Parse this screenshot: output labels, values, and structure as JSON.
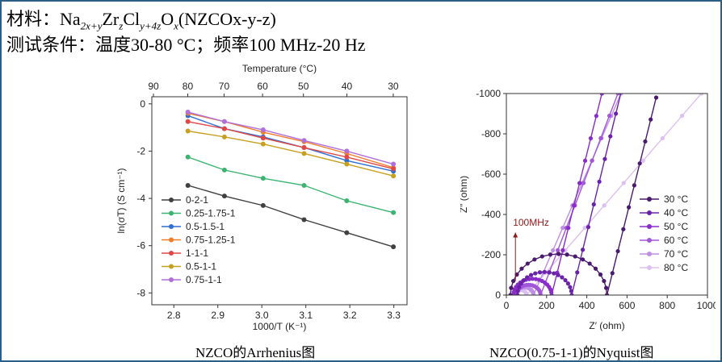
{
  "slide": {
    "line1_prefix": "材料：",
    "formula": {
      "p1": "Na",
      "s1": "2x+y",
      "p2": "Zr",
      "s2": "z",
      "p3": "Cl",
      "s3": "y+4z",
      "p4": "O",
      "s4": "x",
      "p5": "(NZCOx-y-z)"
    },
    "line2": "测试条件：温度30-80 °C；频率100 MHz-20 Hz",
    "caption_left": "NZCO的Arrhenius图",
    "caption_right": "NZCO(0.75-1-1)的Nyquist图"
  },
  "chart_data": [
    {
      "type": "line",
      "xlabel": "1000/T (K⁻¹)",
      "ylabel": "ln(σT) (S cm⁻¹)",
      "top_axis_label": "Temperature (°C)",
      "top_axis_ticks": [
        "90",
        "80",
        "70",
        "60",
        "50",
        "40",
        "30"
      ],
      "xlim": [
        2.75,
        3.33
      ],
      "ylim": [
        -8.5,
        0.3
      ],
      "x_ticks": [
        "2.8",
        "2.9",
        "3.0",
        "3.1",
        "3.2",
        "3.3"
      ],
      "y_ticks": [
        "0",
        "-2",
        "-4",
        "-6",
        "-8"
      ],
      "legend_position": "bottom-left",
      "x": [
        2.832,
        2.915,
        3.003,
        3.096,
        3.193,
        3.299
      ],
      "series": [
        {
          "name": "0-2-1",
          "color": "#404040",
          "values": [
            -3.45,
            -3.9,
            -4.3,
            -4.9,
            -5.45,
            -6.05
          ]
        },
        {
          "name": "0.25-1.75-1",
          "color": "#3cb371",
          "values": [
            -2.25,
            -2.8,
            -3.15,
            -3.45,
            -4.1,
            -4.6
          ]
        },
        {
          "name": "0.5-1.5-1",
          "color": "#2f6fd0",
          "values": [
            -0.5,
            -1.05,
            -1.4,
            -1.85,
            -2.4,
            -2.85
          ]
        },
        {
          "name": "0.75-1.25-1",
          "color": "#f07d2a",
          "values": [
            -0.4,
            -0.75,
            -1.2,
            -1.6,
            -2.1,
            -2.7
          ]
        },
        {
          "name": "1-1-1",
          "color": "#e04848",
          "values": [
            -0.75,
            -1.05,
            -1.45,
            -1.85,
            -2.25,
            -2.75
          ]
        },
        {
          "name": "0.5-1-1",
          "color": "#c8a020",
          "values": [
            -1.15,
            -1.4,
            -1.7,
            -2.1,
            -2.55,
            -3.05
          ]
        },
        {
          "name": "0.75-1-1",
          "color": "#b070d8",
          "values": [
            -0.35,
            -0.75,
            -1.1,
            -1.55,
            -2.0,
            -2.55
          ]
        }
      ]
    },
    {
      "type": "line",
      "xlabel": "Z′ (ohm)",
      "ylabel": "Z″ (ohm)",
      "xlim": [
        0,
        1000
      ],
      "ylim": [
        0,
        -1000
      ],
      "x_ticks": [
        "0",
        "200",
        "400",
        "600",
        "800",
        "1000"
      ],
      "y_ticks": [
        "0",
        "-200",
        "-400",
        "-600",
        "-800",
        "-1000"
      ],
      "legend_position": "right",
      "annotation": "100MHz",
      "series": [
        {
          "name": "30 °C",
          "color": "#4a1a6e",
          "center": 260,
          "radius": 240,
          "tail_start": 500,
          "tail_slope": 4.0,
          "tail_end_x": 745
        },
        {
          "name": "40 °C",
          "color": "#6a22a8",
          "center": 190,
          "radius": 135,
          "tail_start": 325,
          "tail_slope": 4.1,
          "tail_end_x": 572
        },
        {
          "name": "50 °C",
          "color": "#8a2cc8",
          "center": 130,
          "radius": 95,
          "tail_start": 225,
          "tail_slope": 4.0,
          "tail_end_x": 475
        },
        {
          "name": "60 °C",
          "color": "#a157d8",
          "center": 110,
          "radius": 60,
          "tail_start": 170,
          "tail_slope": 2.6,
          "tail_end_x": 555
        },
        {
          "name": "70 °C",
          "color": "#bf8fe6",
          "center": 90,
          "radius": 45,
          "tail_start": 135,
          "tail_slope": 2.3,
          "tail_end_x": 570
        },
        {
          "name": "80 °C",
          "color": "#dcc0f2",
          "center": 70,
          "radius": 30,
          "tail_start": 100,
          "tail_slope": 1.15,
          "tail_end_x": 970
        }
      ]
    }
  ]
}
